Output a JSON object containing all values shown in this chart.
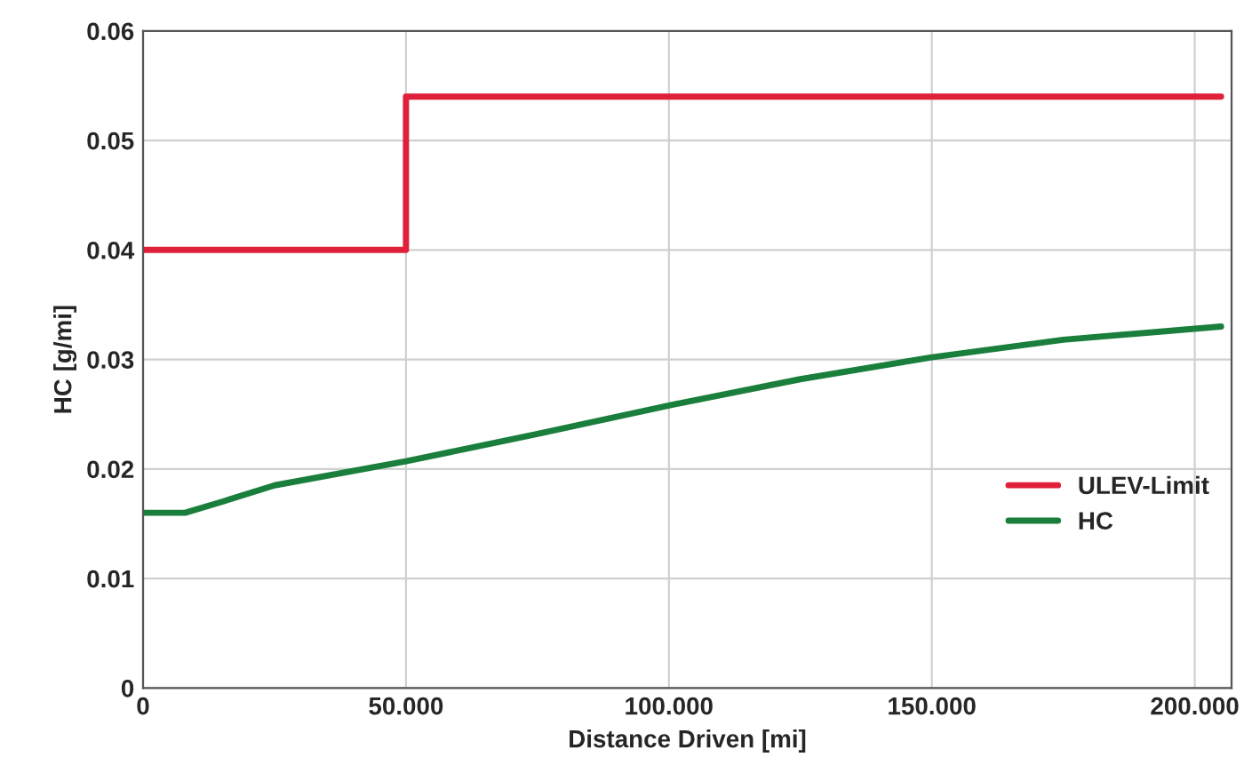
{
  "chart_data": {
    "type": "line",
    "xlabel": "Distance Driven [mi]",
    "ylabel": "HC [g/mi]",
    "xlim": [
      0,
      207
    ],
    "ylim": [
      0,
      0.06
    ],
    "xticks": [
      0,
      {
        "value": 50,
        "label": "50.000"
      },
      {
        "value": 100,
        "label": "100.000"
      },
      {
        "value": 150,
        "label": "150.000"
      },
      {
        "value": 200,
        "label": "200.000"
      }
    ],
    "yticks": [
      0,
      0.01,
      0.02,
      0.03,
      0.04,
      0.05,
      0.06
    ],
    "grid": true,
    "legend": "bottom right",
    "line_style": "solid",
    "series": [
      {
        "name": "ULEV-Limit",
        "type": "step",
        "color": "#e0203a",
        "x": [
          0,
          50,
          205
        ],
        "values": [
          0.04,
          0.054,
          0.054
        ]
      },
      {
        "name": "HC",
        "color": "#1a7f3c",
        "x": [
          0,
          8,
          15,
          25,
          50,
          75,
          100,
          125,
          150,
          175,
          205
        ],
        "values": [
          0.016,
          0.016,
          0.017,
          0.0185,
          0.0207,
          0.0232,
          0.0258,
          0.0282,
          0.0302,
          0.0318,
          0.033
        ]
      }
    ]
  }
}
